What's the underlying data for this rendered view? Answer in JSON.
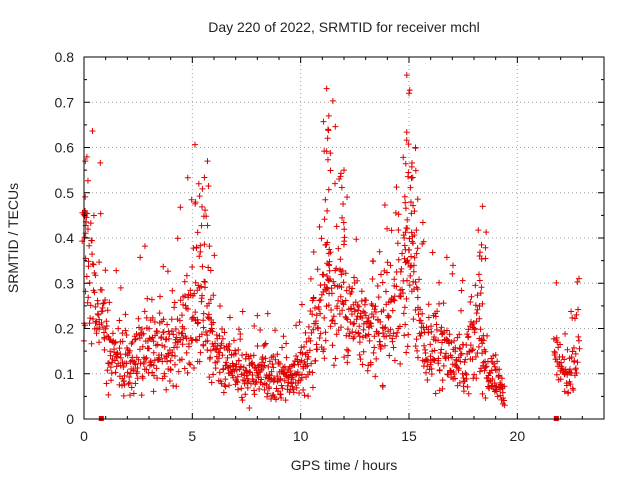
{
  "chart_data": {
    "type": "scatter",
    "title": "Day 220 of 2022, SRMTID for receiver mchl",
    "xlabel": "GPS time / hours",
    "ylabel": "SRMTID / TECUs",
    "xlim": [
      0,
      24
    ],
    "ylim": [
      0,
      0.8
    ],
    "grid": true,
    "x_ticks": [
      0,
      5,
      10,
      15,
      20
    ],
    "y_ticks": [
      0,
      0.1,
      0.2,
      0.3,
      0.4,
      0.5,
      0.6,
      0.7,
      0.8
    ],
    "x_tick_labels": [
      "0",
      "5",
      "10",
      "15",
      "20"
    ],
    "y_tick_labels": [
      "0",
      "0.1",
      "0.2",
      "0.3",
      "0.4",
      "0.5",
      "0.6",
      "0.7",
      "0.8"
    ],
    "marker": "+",
    "series_color": "#e00000",
    "series": [
      {
        "name": "SRMTID",
        "envelope": [
          {
            "x": 0.0,
            "y": 0.4
          },
          {
            "x": 0.3,
            "y": 0.35
          },
          {
            "x": 0.6,
            "y": 0.25
          },
          {
            "x": 1.0,
            "y": 0.22
          },
          {
            "x": 1.3,
            "y": 0.15
          },
          {
            "x": 1.8,
            "y": 0.12
          },
          {
            "x": 2.3,
            "y": 0.14
          },
          {
            "x": 2.8,
            "y": 0.17
          },
          {
            "x": 3.3,
            "y": 0.15
          },
          {
            "x": 3.8,
            "y": 0.14
          },
          {
            "x": 4.3,
            "y": 0.18
          },
          {
            "x": 4.8,
            "y": 0.23
          },
          {
            "x": 5.2,
            "y": 0.27
          },
          {
            "x": 5.6,
            "y": 0.22
          },
          {
            "x": 6.0,
            "y": 0.16
          },
          {
            "x": 6.5,
            "y": 0.13
          },
          {
            "x": 7.0,
            "y": 0.11
          },
          {
            "x": 7.5,
            "y": 0.1
          },
          {
            "x": 8.0,
            "y": 0.1
          },
          {
            "x": 8.5,
            "y": 0.1
          },
          {
            "x": 9.0,
            "y": 0.09
          },
          {
            "x": 9.5,
            "y": 0.09
          },
          {
            "x": 10.0,
            "y": 0.11
          },
          {
            "x": 10.5,
            "y": 0.17
          },
          {
            "x": 11.0,
            "y": 0.26
          },
          {
            "x": 11.5,
            "y": 0.3
          },
          {
            "x": 12.0,
            "y": 0.28
          },
          {
            "x": 12.5,
            "y": 0.22
          },
          {
            "x": 13.0,
            "y": 0.18
          },
          {
            "x": 13.5,
            "y": 0.19
          },
          {
            "x": 14.0,
            "y": 0.2
          },
          {
            "x": 14.5,
            "y": 0.26
          },
          {
            "x": 15.0,
            "y": 0.34
          },
          {
            "x": 15.4,
            "y": 0.26
          },
          {
            "x": 15.8,
            "y": 0.14
          },
          {
            "x": 16.3,
            "y": 0.17
          },
          {
            "x": 16.8,
            "y": 0.15
          },
          {
            "x": 17.3,
            "y": 0.13
          },
          {
            "x": 17.8,
            "y": 0.14
          },
          {
            "x": 18.2,
            "y": 0.2
          },
          {
            "x": 18.6,
            "y": 0.11
          },
          {
            "x": 19.0,
            "y": 0.09
          },
          {
            "x": 19.4,
            "y": 0.06
          }
        ],
        "envelope2": [
          {
            "x": 21.7,
            "y": 0.14
          },
          {
            "x": 22.0,
            "y": 0.11
          },
          {
            "x": 22.3,
            "y": 0.09
          },
          {
            "x": 22.6,
            "y": 0.14
          },
          {
            "x": 22.9,
            "y": 0.18
          }
        ],
        "spikes": [
          {
            "x": 0.05,
            "y": 0.46
          },
          {
            "x": 5.3,
            "y": 0.52
          },
          {
            "x": 5.7,
            "y": 0.57
          },
          {
            "x": 11.2,
            "y": 0.73
          },
          {
            "x": 11.3,
            "y": 0.67
          },
          {
            "x": 12.0,
            "y": 0.55
          },
          {
            "x": 14.9,
            "y": 0.76
          },
          {
            "x": 15.0,
            "y": 0.72
          },
          {
            "x": 15.3,
            "y": 0.6
          },
          {
            "x": 18.4,
            "y": 0.47
          }
        ],
        "zero_points": [
          {
            "x": 0.8,
            "y": 0.0
          },
          {
            "x": 21.8,
            "y": 0.0
          }
        ]
      }
    ]
  }
}
